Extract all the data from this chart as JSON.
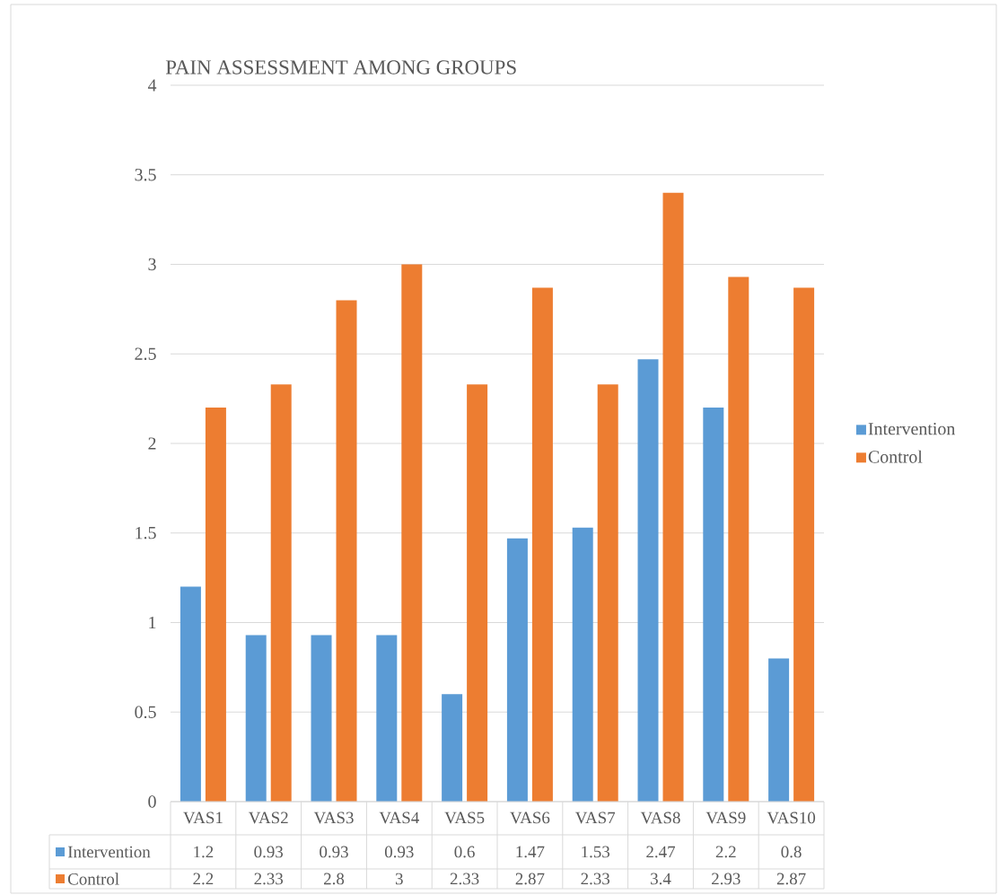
{
  "chart_data": {
    "type": "bar",
    "title": "PAIN ASSESSMENT AMONG GROUPS",
    "categories": [
      "VAS1",
      "VAS2",
      "VAS3",
      "VAS4",
      "VAS5",
      "VAS6",
      "VAS7",
      "VAS8",
      "VAS9",
      "VAS10"
    ],
    "series": [
      {
        "name": "Intervention",
        "color": "#5b9bd5",
        "values": [
          1.2,
          0.93,
          0.93,
          0.93,
          0.6,
          1.47,
          1.53,
          2.47,
          2.2,
          0.8
        ],
        "value_labels": [
          "1.2",
          "0.93",
          "0.93",
          "0.93",
          "0.6",
          "1.47",
          "1.53",
          "2.47",
          "2.2",
          "0.8"
        ]
      },
      {
        "name": "Control",
        "color": "#ed7d31",
        "values": [
          2.2,
          2.33,
          2.8,
          3,
          2.33,
          2.87,
          2.33,
          3.4,
          2.93,
          2.87
        ],
        "value_labels": [
          "2.2",
          "2.33",
          "2.8",
          "3",
          "2.33",
          "2.87",
          "2.33",
          "3.4",
          "2.93",
          "2.87"
        ]
      }
    ],
    "ylim": [
      0,
      4
    ],
    "yticks": [
      0,
      0.5,
      1,
      1.5,
      2,
      2.5,
      3,
      3.5,
      4
    ],
    "grid": "y",
    "legend": "right"
  }
}
